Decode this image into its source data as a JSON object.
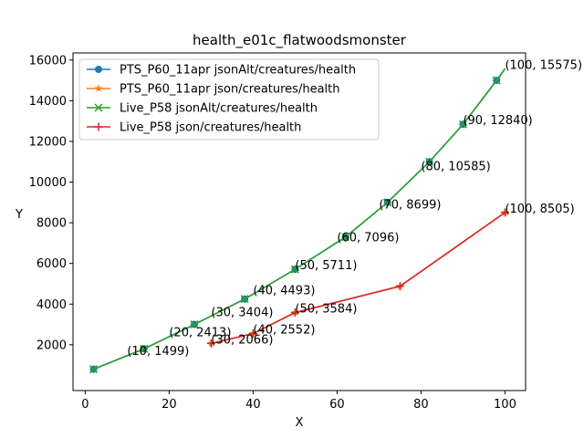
{
  "chart_data": {
    "type": "line",
    "title": "health_e01c_flatwoodsmonster",
    "xlabel": "X",
    "ylabel": "Y",
    "xlim": [
      -2.9,
      104.9
    ],
    "ylim": [
      -250,
      16350
    ],
    "xticks": [
      0,
      20,
      40,
      60,
      80,
      100
    ],
    "yticks": [
      2000,
      4000,
      6000,
      8000,
      10000,
      12000,
      14000,
      16000
    ],
    "legend_position": "top-left",
    "series": [
      {
        "name": "PTS_P60_11apr jsonAlt/creatures/health",
        "color": "#1f77b4",
        "marker": "circle",
        "x": [
          2,
          14,
          26,
          38,
          50,
          62,
          72,
          82,
          90,
          98,
          100
        ],
        "y": [
          800,
          1800,
          3000,
          4250,
          5711,
          7300,
          9000,
          11000,
          12840,
          15000,
          15575
        ]
      },
      {
        "name": "PTS_P60_11apr json/creatures/health",
        "color": "#ff7f0e",
        "marker": "star",
        "x": [
          30,
          40,
          50,
          75,
          100
        ],
        "y": [
          2066,
          2552,
          3584,
          4880,
          8505
        ]
      },
      {
        "name": "Live_P58 jsonAlt/creatures/health",
        "color": "#2ca02c",
        "marker": "x",
        "x": [
          2,
          14,
          26,
          38,
          50,
          62,
          72,
          82,
          90,
          98,
          100
        ],
        "y": [
          800,
          1800,
          3000,
          4250,
          5711,
          7300,
          9000,
          11000,
          12840,
          15000,
          15575
        ]
      },
      {
        "name": "Live_P58 json/creatures/health",
        "color": "#d62728",
        "marker": "plus",
        "x": [
          30,
          40,
          50,
          75,
          100
        ],
        "y": [
          2066,
          2552,
          3584,
          4880,
          8505
        ]
      }
    ],
    "annotations": [
      {
        "text": "(10, 1499)",
        "x": 10,
        "y": 1499
      },
      {
        "text": "(20, 2413)",
        "x": 20,
        "y": 2413
      },
      {
        "text": "(30, 3404)",
        "x": 30,
        "y": 3404
      },
      {
        "text": "(40, 4493)",
        "x": 40,
        "y": 4493
      },
      {
        "text": "(50, 5711)",
        "x": 50,
        "y": 5711
      },
      {
        "text": "(60, 7096)",
        "x": 60,
        "y": 7096
      },
      {
        "text": "(70, 8699)",
        "x": 70,
        "y": 8699
      },
      {
        "text": "(80, 10585)",
        "x": 80,
        "y": 10585
      },
      {
        "text": "(90, 12840)",
        "x": 90,
        "y": 12840
      },
      {
        "text": "(100, 15575)",
        "x": 100,
        "y": 15575
      },
      {
        "text": "(30, 2066)",
        "x": 30,
        "y": 2066
      },
      {
        "text": "(40, 2552)",
        "x": 40,
        "y": 2552
      },
      {
        "text": "(50, 3584)",
        "x": 50,
        "y": 3584
      },
      {
        "text": "(100, 8505)",
        "x": 100,
        "y": 8505
      }
    ]
  }
}
